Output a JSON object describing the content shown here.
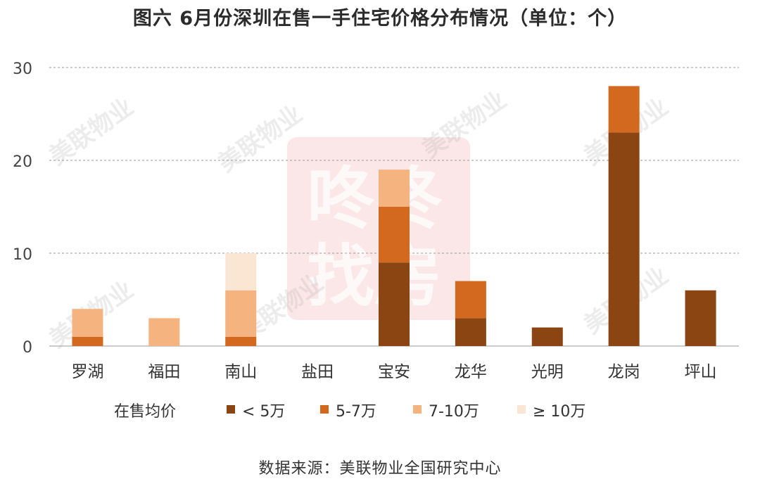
{
  "chart_data": {
    "type": "bar",
    "stacked": true,
    "title": "图六 6月份深圳在售一手住宅价格分布情况（单位：个）",
    "categories": [
      "罗湖",
      "福田",
      "南山",
      "盐田",
      "宝安",
      "龙华",
      "光明",
      "龙岗",
      "坪山"
    ],
    "series": [
      {
        "name": "< 5万",
        "color": "#8b4513",
        "values": [
          0,
          0,
          0,
          0,
          9,
          3,
          2,
          23,
          6
        ]
      },
      {
        "name": "5-7万",
        "color": "#d2691e",
        "values": [
          1,
          0,
          1,
          0,
          6,
          4,
          0,
          5,
          0
        ]
      },
      {
        "name": "7-10万",
        "color": "#f5b380",
        "values": [
          3,
          3,
          5,
          0,
          4,
          0,
          0,
          0,
          0
        ]
      },
      {
        "name": "≥ 10万",
        "color": "#fbe6d4",
        "values": [
          0,
          0,
          4,
          0,
          0,
          0,
          0,
          0,
          0
        ]
      }
    ],
    "ylim": [
      0,
      30
    ],
    "yticks": [
      0,
      10,
      20,
      30
    ],
    "grid": true,
    "legend_title": "在售均价",
    "legend_position": "bottom",
    "xlabel": "",
    "ylabel": ""
  },
  "source": "数据来源：美联物业全国研究中心",
  "watermark": {
    "text": "美联物业",
    "stamp_line1": "咚咚",
    "stamp_line2": "找房"
  }
}
